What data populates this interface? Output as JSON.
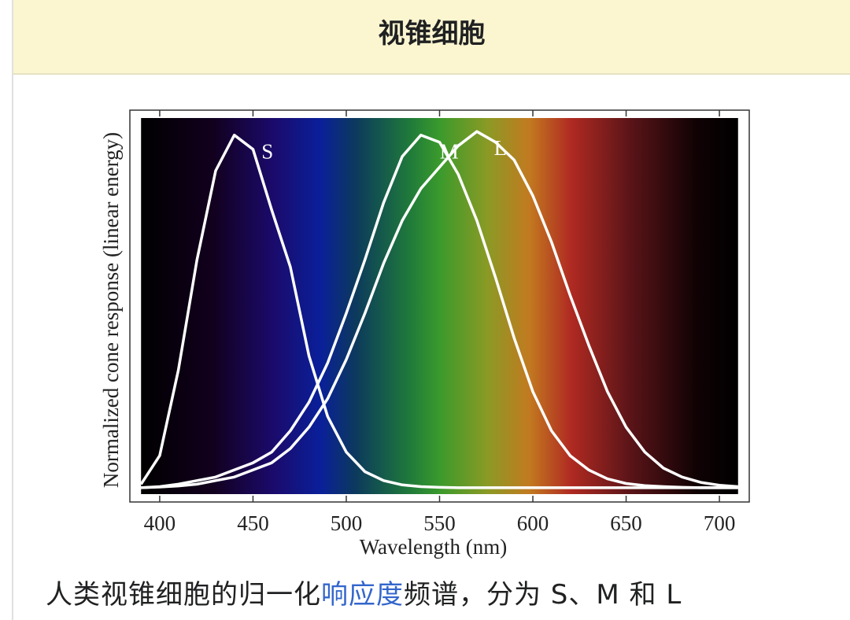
{
  "header": {
    "title": "视锥细胞"
  },
  "chart_data": {
    "type": "line",
    "x_label": "Wavelength (nm)",
    "y_label": "Normalized cone response (linear energy)",
    "x": [
      390,
      400,
      410,
      420,
      430,
      440,
      450,
      460,
      470,
      480,
      490,
      500,
      510,
      520,
      530,
      540,
      550,
      560,
      570,
      580,
      590,
      600,
      610,
      620,
      630,
      640,
      650,
      660,
      670,
      680,
      690,
      700,
      710
    ],
    "series": [
      {
        "name": "S",
        "color": "#ffffff",
        "values": [
          0.01,
          0.09,
          0.33,
          0.64,
          0.89,
          0.99,
          0.95,
          0.78,
          0.62,
          0.37,
          0.2,
          0.1,
          0.045,
          0.02,
          0.008,
          0.003,
          0.001,
          0,
          0,
          0,
          0,
          0,
          0,
          0,
          0,
          0,
          0,
          0,
          0,
          0,
          0,
          0,
          0
        ]
      },
      {
        "name": "M",
        "color": "#ffffff",
        "values": [
          0,
          0.003,
          0.01,
          0.02,
          0.03,
          0.05,
          0.07,
          0.1,
          0.16,
          0.24,
          0.35,
          0.49,
          0.64,
          0.8,
          0.93,
          0.99,
          0.97,
          0.88,
          0.75,
          0.59,
          0.42,
          0.27,
          0.16,
          0.09,
          0.05,
          0.025,
          0.012,
          0.006,
          0.003,
          0.001,
          0,
          0,
          0
        ]
      },
      {
        "name": "L",
        "color": "#ffffff",
        "values": [
          0,
          0.002,
          0.005,
          0.01,
          0.02,
          0.03,
          0.05,
          0.07,
          0.11,
          0.17,
          0.25,
          0.36,
          0.49,
          0.63,
          0.75,
          0.84,
          0.9,
          0.96,
          1.0,
          0.97,
          0.92,
          0.82,
          0.69,
          0.54,
          0.4,
          0.27,
          0.17,
          0.1,
          0.055,
          0.03,
          0.015,
          0.007,
          0.003
        ]
      }
    ],
    "xlim": [
      384,
      716
    ],
    "ylim": [
      -0.04,
      1.06
    ],
    "xticks": [
      400,
      450,
      500,
      550,
      600,
      650,
      700
    ]
  },
  "caption": {
    "parts": [
      "人类视锥细胞的归一化",
      "响应度",
      "频谱，分为 S、M 和 L"
    ]
  }
}
